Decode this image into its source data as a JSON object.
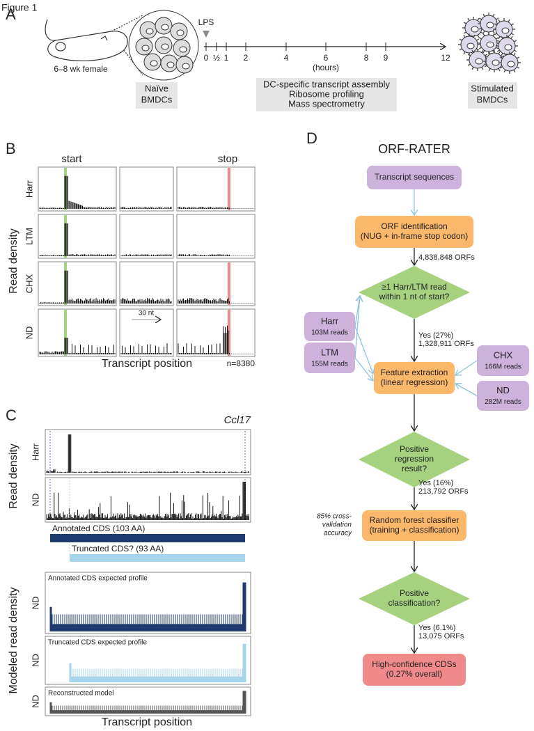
{
  "figure_label": "Figure 1",
  "panel_a": {
    "label": "A",
    "mouse_label": "6–8 wk female",
    "lps": "LPS",
    "timeline_ticks": [
      "0",
      "½",
      "1",
      "2",
      "4",
      "6",
      "8",
      "9",
      "12"
    ],
    "hours": "(hours)",
    "naive": [
      "Naïve",
      "BMDCs"
    ],
    "assays": [
      "DC-specific transcript assembly",
      "Ribosome profiling",
      "Mass spectrometry"
    ],
    "stimulated": [
      "Stimulated",
      "BMDCs"
    ]
  },
  "panel_b": {
    "label": "B",
    "start": "start",
    "stop": "stop",
    "y_axis": "Read density",
    "rows": [
      "Harr",
      "LTM",
      "CHX",
      "ND"
    ],
    "scale_bar": "30 nt",
    "x_axis": "Transcript position",
    "n": "n=8380"
  },
  "panel_c": {
    "label": "C",
    "gene": "Ccl17",
    "y_axis_top": "Read density",
    "tracks": [
      "Harr",
      "ND"
    ],
    "annotated": "Annotated CDS (103 AA)",
    "truncated": "Truncated CDS? (93 AA)",
    "y_axis_bottom": "Modeled read density",
    "models": [
      {
        "row": "ND",
        "title": "Annotated CDS expected profile"
      },
      {
        "row": "ND",
        "title": "Truncated CDS expected profile"
      },
      {
        "row": "ND",
        "title": "Reconstructed model"
      }
    ],
    "x_axis": "Transcript position"
  },
  "panel_d": {
    "label": "D",
    "title": "ORF-RATER",
    "nodes": [
      {
        "lines": [
          "Transcript sequences"
        ]
      },
      {
        "lines": [
          "ORF identification",
          "(NUG + in-frame stop codon)"
        ]
      },
      {
        "lines": [
          "≥1 Harr/LTM read",
          "within 1 nt of start?"
        ]
      },
      {
        "lines": [
          "Feature extraction",
          "(linear regression)"
        ]
      },
      {
        "lines": [
          "Positive",
          "regression",
          "result?"
        ]
      },
      {
        "lines": [
          "Random forest classifier",
          "(training + classification)"
        ]
      },
      {
        "lines": [
          "Positive",
          "classification?"
        ]
      },
      {
        "lines": [
          "High-confidence CDSs",
          "(0.27% overall)"
        ]
      }
    ],
    "inputs": [
      {
        "name": "Harr",
        "reads": "103M reads"
      },
      {
        "name": "LTM",
        "reads": "155M reads"
      },
      {
        "name": "CHX",
        "reads": "166M reads"
      },
      {
        "name": "ND",
        "reads": "282M reads"
      }
    ],
    "edge_labels": [
      [
        "4,838,848 ORFs"
      ],
      [
        "Yes (27%)",
        "1,328,911 ORFs"
      ],
      [
        "Yes (16%)",
        "213,792 ORFs"
      ],
      [
        "Yes (6.1%)",
        "13,075 ORFs"
      ]
    ],
    "accuracy_note": [
      "85% cross-",
      "validation",
      "accuracy"
    ]
  }
}
